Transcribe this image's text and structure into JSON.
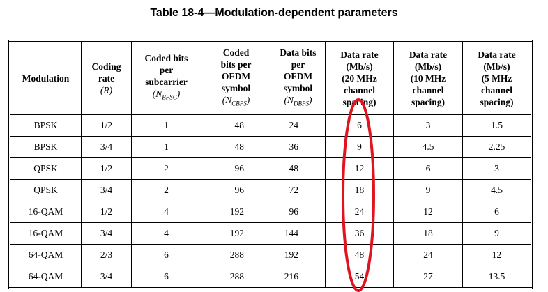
{
  "title": "Table 18-4—Modulation-dependent parameters",
  "columns": [
    {
      "lines": [
        "Modulation"
      ]
    },
    {
      "lines": [
        "Coding",
        "rate"
      ],
      "symbol": {
        "prefix": "(",
        "var": "R",
        "suffix": ")"
      }
    },
    {
      "lines": [
        "Coded bits",
        "per",
        "subcarrier"
      ],
      "symbol": {
        "prefix": "(",
        "var": "N",
        "sub": "BPSC",
        "suffix": ")"
      }
    },
    {
      "lines": [
        "Coded",
        "bits per",
        "OFDM",
        "symbol"
      ],
      "symbol": {
        "prefix": "(",
        "var": "N",
        "sub": "CBPS",
        "suffix": ")"
      }
    },
    {
      "lines": [
        "Data bits",
        "per",
        "OFDM",
        "symbol"
      ],
      "symbol": {
        "prefix": "(",
        "var": "N",
        "sub": "DBPS",
        "suffix": ")"
      }
    },
    {
      "lines": [
        "Data rate",
        "(Mb/s)",
        "(20 MHz",
        "channel",
        "spacing)"
      ]
    },
    {
      "lines": [
        "Data rate",
        "(Mb/s)",
        "(10 MHz",
        "channel",
        "spacing)"
      ]
    },
    {
      "lines": [
        "Data rate",
        "(Mb/s)",
        "(5 MHz",
        "channel",
        "spacing)"
      ]
    }
  ],
  "rows": [
    [
      "BPSK",
      "1/2",
      1,
      48,
      24,
      6,
      3,
      1.5
    ],
    [
      "BPSK",
      "3/4",
      1,
      48,
      36,
      9,
      4.5,
      2.25
    ],
    [
      "QPSK",
      "1/2",
      2,
      96,
      48,
      12,
      6,
      3
    ],
    [
      "QPSK",
      "3/4",
      2,
      96,
      72,
      18,
      9,
      4.5
    ],
    [
      "16-QAM",
      "1/2",
      4,
      192,
      96,
      24,
      12,
      6
    ],
    [
      "16-QAM",
      "3/4",
      4,
      192,
      144,
      36,
      18,
      9
    ],
    [
      "64-QAM",
      "2/3",
      6,
      288,
      192,
      48,
      24,
      12
    ],
    [
      "64-QAM",
      "3/4",
      6,
      288,
      216,
      54,
      27,
      13.5
    ]
  ]
}
